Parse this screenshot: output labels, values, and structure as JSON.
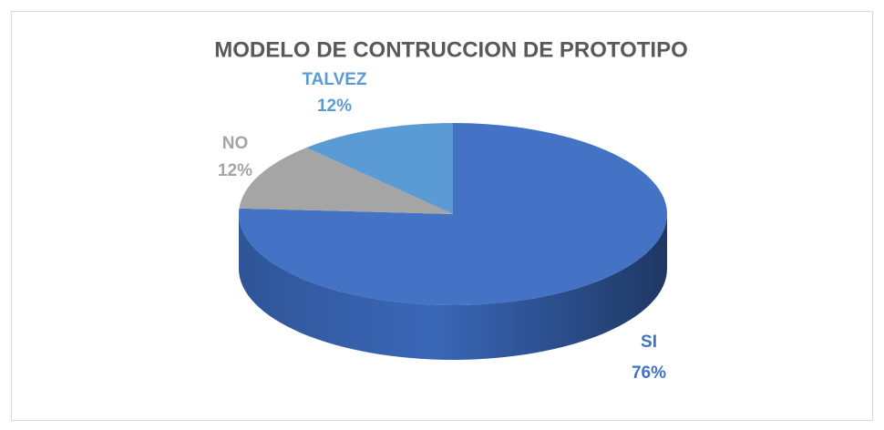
{
  "chart_data": {
    "type": "pie",
    "title": "MODELO DE CONTRUCCION DE PROTOTIPO",
    "categories": [
      "SI",
      "NO",
      "TALVEZ"
    ],
    "values": [
      76,
      12,
      12
    ],
    "value_labels": [
      "76%",
      "12%",
      "12%"
    ],
    "colors": [
      "#4472c4",
      "#a5a5a5",
      "#5b9bd5"
    ]
  }
}
